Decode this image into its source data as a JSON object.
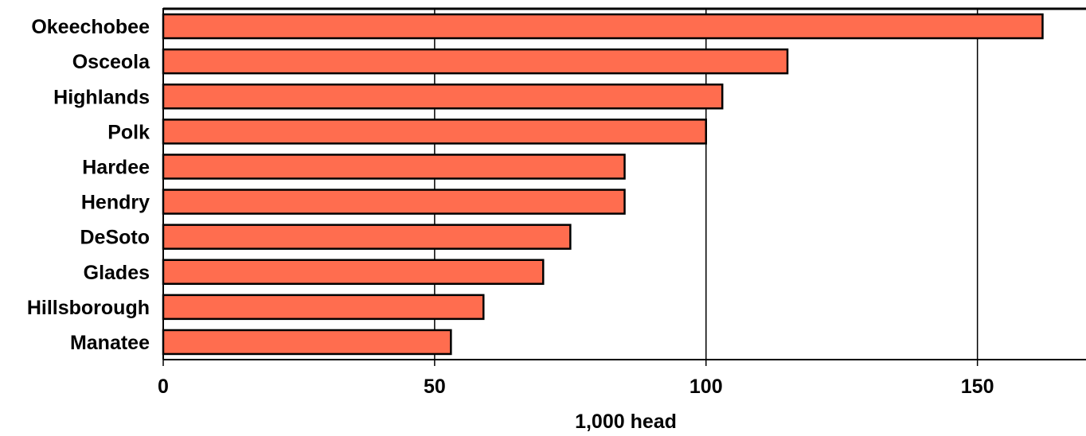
{
  "chart_data": {
    "type": "bar",
    "orientation": "horizontal",
    "categories": [
      "Okeechobee",
      "Osceola",
      "Highlands",
      "Polk",
      "Hardee",
      "Hendry",
      "DeSoto",
      "Glades",
      "Hillsborough",
      "Manatee"
    ],
    "values": [
      162,
      115,
      103,
      100,
      85,
      85,
      75,
      70,
      59,
      53
    ],
    "xlabel": "1,000 head",
    "ylabel": "",
    "title": "",
    "xlim": [
      0,
      170
    ],
    "xticks": [
      0,
      50,
      100,
      150
    ],
    "xtick_labels": [
      "0",
      "50",
      "100",
      "150"
    ],
    "grid": "vertical",
    "legend": "none",
    "bar_color": "#ff6d4f",
    "bar_edge_color": "#000000"
  }
}
